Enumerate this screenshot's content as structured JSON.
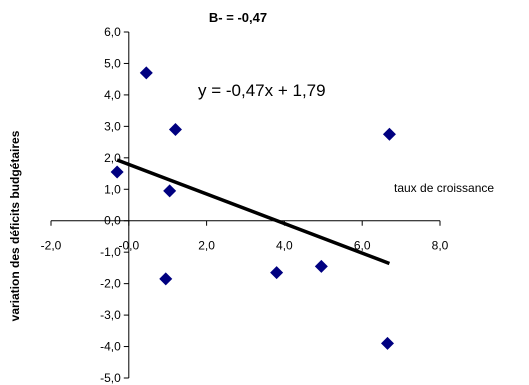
{
  "chart_data": {
    "type": "scatter",
    "title": "B- =  -0,47",
    "xlabel": "taux de croissance",
    "ylabel": "variation des déficits budgétaires",
    "xlim": [
      -2,
      8
    ],
    "ylim": [
      -5,
      6
    ],
    "x_ticks": [
      "-2,0",
      "-0,0",
      "2,0",
      "4,0",
      "6,0",
      "8,0"
    ],
    "y_ticks": [
      "6,0",
      "5,0",
      "4,0",
      "3,0",
      "2,0",
      "1,0",
      "0,0",
      "-1,0",
      "-2,0",
      "-3,0",
      "-4,0",
      "-5,0"
    ],
    "marker_color": "#000080",
    "line_color": "#000000",
    "series": [
      {
        "points": [
          {
            "x": -0.3,
            "y": 1.55
          },
          {
            "x": 0.45,
            "y": 4.7
          },
          {
            "x": 1.2,
            "y": 2.9
          },
          {
            "x": 1.05,
            "y": 0.95
          },
          {
            "x": 6.7,
            "y": 2.75
          },
          {
            "x": 0.95,
            "y": -1.85
          },
          {
            "x": 3.8,
            "y": -1.65
          },
          {
            "x": 4.95,
            "y": -1.45
          },
          {
            "x": 6.65,
            "y": -3.9
          }
        ]
      }
    ],
    "trendline": {
      "label": "y = -0,47x + 1,79",
      "slope": -0.47,
      "intercept": 1.79,
      "x_range": [
        -0.3,
        6.7
      ]
    }
  }
}
